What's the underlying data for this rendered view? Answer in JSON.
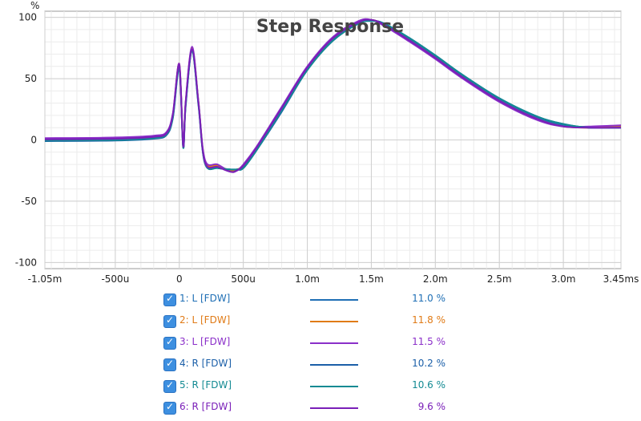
{
  "chart_data": {
    "type": "line",
    "title": "Step Response",
    "ylabel": "%",
    "xunit": "s",
    "xlim": [
      -0.00105,
      0.00345
    ],
    "ylim": [
      -105,
      105
    ],
    "grid": true,
    "x_ticks": [
      {
        "value": -0.00105,
        "label": "-1.05m"
      },
      {
        "value": -0.0005,
        "label": "-500u"
      },
      {
        "value": 0,
        "label": "0"
      },
      {
        "value": 0.0005,
        "label": "500u"
      },
      {
        "value": 0.001,
        "label": "1.0m"
      },
      {
        "value": 0.0015,
        "label": "1.5m"
      },
      {
        "value": 0.002,
        "label": "2.0m"
      },
      {
        "value": 0.0025,
        "label": "2.5m"
      },
      {
        "value": 0.003,
        "label": "3.0m"
      },
      {
        "value": 0.00345,
        "label": "3.45ms"
      }
    ],
    "y_ticks": [
      100,
      50,
      0,
      -50,
      -100
    ],
    "x": [
      -0.00105,
      -0.0005,
      -0.0002,
      -0.0001,
      -5e-05,
      0,
      3e-05,
      5e-05,
      0.0001,
      0.00015,
      0.0002,
      0.0003,
      0.0004,
      0.00045,
      0.0005,
      0.0006,
      0.0008,
      0.001,
      0.0012,
      0.0014,
      0.0015,
      0.0016,
      0.0018,
      0.002,
      0.0022,
      0.0025,
      0.0028,
      0.003,
      0.0032,
      0.00345
    ],
    "series": [
      {
        "name": "1: L [FDW]",
        "color": "#1f6fb5",
        "legend_value": "11.0 %",
        "values": [
          0,
          0.5,
          2,
          5,
          20,
          60,
          -5,
          30,
          73,
          30,
          -18,
          -22,
          -25,
          -24,
          -22,
          -8,
          25,
          58,
          82,
          96,
          98,
          94,
          82,
          68,
          53,
          33,
          18,
          12,
          10,
          10
        ]
      },
      {
        "name": "2: L [FDW]",
        "color": "#e07b17",
        "legend_value": "11.8 %",
        "values": [
          1,
          1.5,
          3,
          6,
          21,
          62,
          -4,
          31,
          75,
          31,
          -17,
          -21,
          -25,
          -24,
          -21,
          -7,
          26,
          59,
          83,
          96,
          98,
          94,
          81,
          67,
          52,
          32,
          17,
          11,
          10,
          11
        ]
      },
      {
        "name": "3: L [FDW]",
        "color": "#8b2fc9",
        "legend_value": "11.5 %",
        "values": [
          1.5,
          2,
          3.5,
          6.5,
          22,
          62,
          -4,
          32,
          76,
          31,
          -16,
          -20,
          -26,
          -25,
          -20,
          -6,
          27,
          60,
          84,
          97,
          98,
          93,
          80,
          66,
          51,
          31,
          16,
          11,
          11,
          12
        ]
      },
      {
        "name": "4: R [FDW]",
        "color": "#1b5fa8",
        "legend_value": "10.2 %",
        "values": [
          -1,
          -0.5,
          1,
          4,
          18,
          58,
          -6,
          28,
          72,
          28,
          -19,
          -23,
          -24,
          -24,
          -23,
          -9,
          23,
          57,
          81,
          95,
          97,
          95,
          83,
          69,
          54,
          34,
          19,
          13,
          10,
          10
        ]
      },
      {
        "name": "5: R [FDW]",
        "color": "#138a93",
        "legend_value": "10.6 %",
        "values": [
          -0.5,
          0,
          1.5,
          4.5,
          19,
          59,
          -6,
          29,
          72,
          29,
          -19,
          -23,
          -24,
          -24,
          -23,
          -9,
          24,
          57,
          81,
          95,
          97,
          95,
          83,
          69,
          54,
          34,
          19,
          13,
          10,
          10
        ]
      },
      {
        "name": "6: R [FDW]",
        "color": "#7a1fb8",
        "legend_value": "9.6 %",
        "values": [
          0.5,
          1,
          2.5,
          5.5,
          21,
          61,
          -5,
          31,
          74,
          30,
          -18,
          -22,
          -26,
          -25,
          -21,
          -7,
          26,
          59,
          83,
          96,
          98,
          94,
          81,
          67,
          52,
          32,
          17,
          11,
          10,
          10
        ]
      }
    ]
  }
}
